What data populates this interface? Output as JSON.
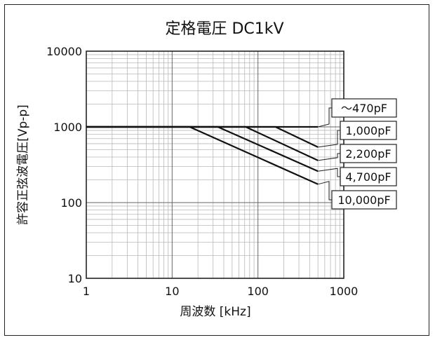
{
  "chart_data": {
    "type": "line",
    "title": "定格電圧 DC1kV",
    "xlabel": "周波数 [kHz]",
    "ylabel": "許容正弦波電圧[Vp-p]",
    "x_scale": "log",
    "y_scale": "log",
    "xlim": [
      1,
      1000
    ],
    "ylim": [
      10,
      10000
    ],
    "grid": true,
    "x_ticks": [
      {
        "value": 1,
        "label": "1"
      },
      {
        "value": 10,
        "label": "10"
      },
      {
        "value": 100,
        "label": "100"
      },
      {
        "value": 1000,
        "label": "1000"
      }
    ],
    "y_ticks": [
      {
        "value": 10,
        "label": "10"
      },
      {
        "value": 100,
        "label": "100"
      },
      {
        "value": 1000,
        "label": "1000"
      },
      {
        "value": 10000,
        "label": "10000"
      }
    ],
    "series": [
      {
        "name": "～470pF",
        "points": [
          [
            1,
            1000
          ],
          [
            500,
            1000
          ]
        ]
      },
      {
        "name": "1,000pF",
        "points": [
          [
            1,
            1000
          ],
          [
            160,
            1000
          ],
          [
            500,
            540
          ]
        ]
      },
      {
        "name": "2,200pF",
        "points": [
          [
            1,
            1000
          ],
          [
            72,
            1000
          ],
          [
            500,
            360
          ]
        ]
      },
      {
        "name": "4,700pF",
        "points": [
          [
            1,
            1000
          ],
          [
            34,
            1000
          ],
          [
            500,
            260
          ]
        ]
      },
      {
        "name": "10,000pF",
        "points": [
          [
            1,
            1000
          ],
          [
            16,
            1000
          ],
          [
            500,
            175
          ]
        ]
      }
    ],
    "colors": {
      "line": "#111111",
      "grid": "#b8b8b8",
      "frame": "#222222"
    }
  }
}
